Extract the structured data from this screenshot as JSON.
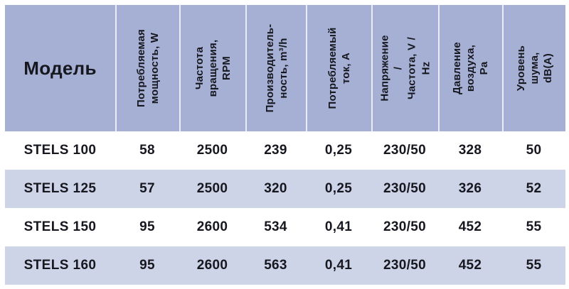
{
  "colors": {
    "header_bg": "#a6b0d5",
    "row_alt_bg": "#cdd4e8",
    "row_bg": "#ffffff",
    "divider": "#e9edf6",
    "text": "#16171f",
    "page_bg": "#ffffff"
  },
  "table": {
    "model_header": "Модель",
    "column_headers": [
      "Потребляемая\nмощность, W",
      "Частота вращения,\nRPM",
      "Производитель-\nность, m³/h",
      "Потребляемый\nток, А",
      "Напряжение /\nЧастота, V / Hz",
      "Давление\nвоздуха, Pa",
      "Уровень шума,\ndB(A)"
    ],
    "rows": [
      {
        "model": "STELS 100",
        "values": [
          "58",
          "2500",
          "239",
          "0,25",
          "230/50",
          "328",
          "50"
        ]
      },
      {
        "model": "STELS 125",
        "values": [
          "57",
          "2500",
          "320",
          "0,25",
          "230/50",
          "326",
          "52"
        ]
      },
      {
        "model": "STELS 150",
        "values": [
          "95",
          "2600",
          "534",
          "0,41",
          "230/50",
          "452",
          "55"
        ]
      },
      {
        "model": "STELS 160",
        "values": [
          "95",
          "2600",
          "563",
          "0,41",
          "230/50",
          "452",
          "55"
        ]
      }
    ]
  }
}
